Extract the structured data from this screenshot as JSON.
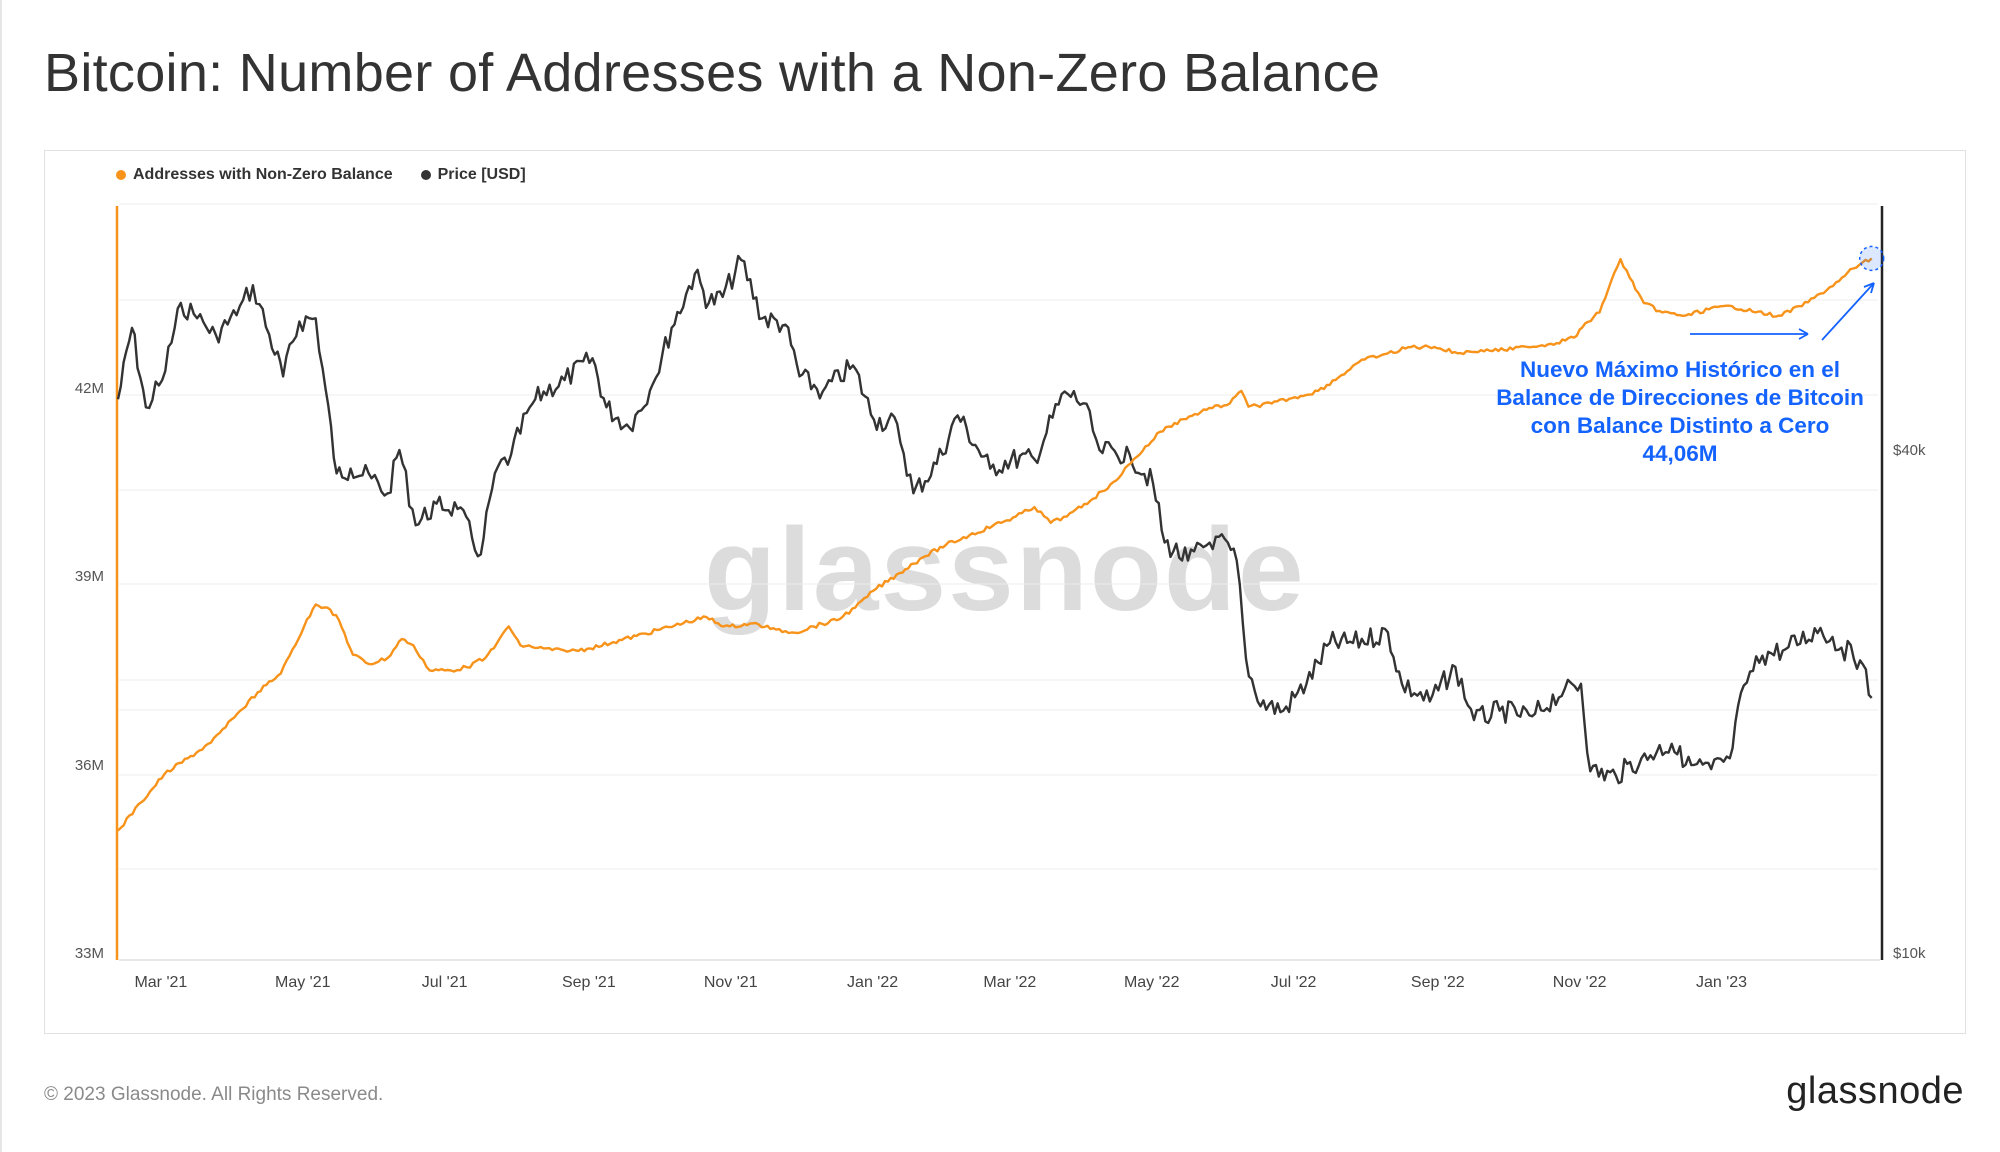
{
  "title": "Bitcoin: Number of Addresses with a Non-Zero Balance",
  "legend": [
    {
      "label": "Addresses with Non-Zero Balance",
      "color": "#f7931a"
    },
    {
      "label": "Price [USD]",
      "color": "#333333"
    }
  ],
  "watermark": "glassnode",
  "annotation": {
    "lines": [
      "Nuevo Máximo Histórico en el",
      "Balance de Direcciones de Bitcoin",
      "con Balance Distinto a Cero",
      "44,06M"
    ],
    "color": "#1463ff"
  },
  "footer": "© 2023 Glassnode. All Rights Reserved.",
  "logo": "glassnode",
  "chart_data": {
    "type": "line",
    "x_ticks": [
      "Mar '21",
      "May '21",
      "Jul '21",
      "Sep '21",
      "Nov '21",
      "Jan '22",
      "Mar '22",
      "May '22",
      "Jul '22",
      "Sep '22",
      "Nov '22",
      "Jan '23"
    ],
    "y_left_ticks": [
      "33M",
      "36M",
      "39M",
      "42M"
    ],
    "y_right_ticks": [
      "$10k",
      "$40k"
    ],
    "y_left_range": [
      33000000,
      45000000
    ],
    "y_right_scale": "log",
    "x_range": [
      "2021-02-14",
      "2023-03-14"
    ],
    "grid": true,
    "legend_position": "top-left",
    "series": [
      {
        "name": "Addresses with Non-Zero Balance",
        "axis": "left",
        "color": "#f7931a",
        "points": [
          [
            "2021-02-14",
            34.95
          ],
          [
            "2021-02-24",
            35.4
          ],
          [
            "2021-03-06",
            35.85
          ],
          [
            "2021-03-16",
            36.1
          ],
          [
            "2021-03-26",
            36.35
          ],
          [
            "2021-04-05",
            36.75
          ],
          [
            "2021-04-15",
            37.15
          ],
          [
            "2021-04-25",
            37.45
          ],
          [
            "2021-05-05",
            38.2
          ],
          [
            "2021-05-10",
            38.55
          ],
          [
            "2021-05-15",
            38.5
          ],
          [
            "2021-05-20",
            38.3
          ],
          [
            "2021-05-26",
            37.75
          ],
          [
            "2021-06-02",
            37.6
          ],
          [
            "2021-06-10",
            37.7
          ],
          [
            "2021-06-16",
            38.0
          ],
          [
            "2021-06-21",
            37.9
          ],
          [
            "2021-06-28",
            37.5
          ],
          [
            "2021-07-07",
            37.5
          ],
          [
            "2021-07-14",
            37.55
          ],
          [
            "2021-07-22",
            37.7
          ],
          [
            "2021-07-28",
            38.0
          ],
          [
            "2021-08-01",
            38.2
          ],
          [
            "2021-08-06",
            37.9
          ],
          [
            "2021-08-16",
            37.85
          ],
          [
            "2021-08-26",
            37.8
          ],
          [
            "2021-09-05",
            37.85
          ],
          [
            "2021-09-15",
            37.95
          ],
          [
            "2021-09-25",
            38.05
          ],
          [
            "2021-10-05",
            38.15
          ],
          [
            "2021-10-15",
            38.25
          ],
          [
            "2021-10-25",
            38.35
          ],
          [
            "2021-10-30",
            38.25
          ],
          [
            "2021-11-04",
            38.2
          ],
          [
            "2021-11-14",
            38.25
          ],
          [
            "2021-11-24",
            38.15
          ],
          [
            "2021-12-02",
            38.1
          ],
          [
            "2021-12-10",
            38.2
          ],
          [
            "2021-12-20",
            38.3
          ],
          [
            "2021-12-28",
            38.5
          ],
          [
            "2022-01-06",
            38.8
          ],
          [
            "2022-01-16",
            39.05
          ],
          [
            "2022-01-26",
            39.3
          ],
          [
            "2022-02-05",
            39.5
          ],
          [
            "2022-02-15",
            39.65
          ],
          [
            "2022-02-25",
            39.8
          ],
          [
            "2022-03-07",
            39.95
          ],
          [
            "2022-03-15",
            40.1
          ],
          [
            "2022-03-22",
            39.85
          ],
          [
            "2022-03-29",
            39.95
          ],
          [
            "2022-04-08",
            40.2
          ],
          [
            "2022-04-18",
            40.5
          ],
          [
            "2022-04-28",
            40.9
          ],
          [
            "2022-05-08",
            41.3
          ],
          [
            "2022-05-18",
            41.5
          ],
          [
            "2022-05-28",
            41.65
          ],
          [
            "2022-06-07",
            41.75
          ],
          [
            "2022-06-12",
            41.95
          ],
          [
            "2022-06-15",
            41.7
          ],
          [
            "2022-06-25",
            41.75
          ],
          [
            "2022-07-05",
            41.85
          ],
          [
            "2022-07-15",
            41.95
          ],
          [
            "2022-07-25",
            42.2
          ],
          [
            "2022-08-04",
            42.45
          ],
          [
            "2022-08-14",
            42.55
          ],
          [
            "2022-08-24",
            42.65
          ],
          [
            "2022-09-03",
            42.65
          ],
          [
            "2022-09-13",
            42.55
          ],
          [
            "2022-09-23",
            42.6
          ],
          [
            "2022-10-03",
            42.6
          ],
          [
            "2022-10-13",
            42.65
          ],
          [
            "2022-10-23",
            42.7
          ],
          [
            "2022-11-02",
            42.8
          ],
          [
            "2022-11-08",
            43.05
          ],
          [
            "2022-11-13",
            43.2
          ],
          [
            "2022-11-18",
            43.7
          ],
          [
            "2022-11-22",
            44.05
          ],
          [
            "2022-11-26",
            43.75
          ],
          [
            "2022-12-02",
            43.35
          ],
          [
            "2022-12-10",
            43.2
          ],
          [
            "2022-12-20",
            43.15
          ],
          [
            "2022-12-30",
            43.25
          ],
          [
            "2023-01-09",
            43.3
          ],
          [
            "2023-01-19",
            43.2
          ],
          [
            "2023-01-29",
            43.15
          ],
          [
            "2023-02-08",
            43.3
          ],
          [
            "2023-02-16",
            43.5
          ],
          [
            "2023-02-24",
            43.7
          ],
          [
            "2023-03-02",
            43.9
          ],
          [
            "2023-03-10",
            44.06
          ]
        ]
      },
      {
        "name": "Price [USD]",
        "axis": "right",
        "color": "#333333",
        "points": [
          [
            "2021-02-14",
            46000
          ],
          [
            "2021-02-20",
            56000
          ],
          [
            "2021-02-26",
            45000
          ],
          [
            "2021-03-05",
            48500
          ],
          [
            "2021-03-13",
            60000
          ],
          [
            "2021-03-20",
            57500
          ],
          [
            "2021-03-28",
            55000
          ],
          [
            "2021-04-06",
            58000
          ],
          [
            "2021-04-13",
            63000
          ],
          [
            "2021-04-20",
            55000
          ],
          [
            "2021-04-26",
            49000
          ],
          [
            "2021-05-03",
            57000
          ],
          [
            "2021-05-10",
            57500
          ],
          [
            "2021-05-13",
            50000
          ],
          [
            "2021-05-19",
            37500
          ],
          [
            "2021-05-25",
            38000
          ],
          [
            "2021-06-03",
            37000
          ],
          [
            "2021-06-10",
            35500
          ],
          [
            "2021-06-15",
            40000
          ],
          [
            "2021-06-22",
            32500
          ],
          [
            "2021-07-01",
            34500
          ],
          [
            "2021-07-10",
            34000
          ],
          [
            "2021-07-20",
            30000
          ],
          [
            "2021-07-26",
            37500
          ],
          [
            "2021-08-02",
            39500
          ],
          [
            "2021-08-10",
            45000
          ],
          [
            "2021-08-16",
            47000
          ],
          [
            "2021-08-25",
            48500
          ],
          [
            "2021-09-06",
            51500
          ],
          [
            "2021-09-12",
            45000
          ],
          [
            "2021-09-22",
            42500
          ],
          [
            "2021-10-02",
            48000
          ],
          [
            "2021-10-10",
            56000
          ],
          [
            "2021-10-20",
            65000
          ],
          [
            "2021-10-26",
            60000
          ],
          [
            "2021-11-01",
            61000
          ],
          [
            "2021-11-09",
            67500
          ],
          [
            "2021-11-18",
            57500
          ],
          [
            "2021-11-28",
            56500
          ],
          [
            "2021-12-04",
            49000
          ],
          [
            "2021-12-14",
            47000
          ],
          [
            "2021-12-27",
            50500
          ],
          [
            "2022-01-05",
            43500
          ],
          [
            "2022-01-15",
            43000
          ],
          [
            "2022-01-22",
            35500
          ],
          [
            "2022-02-01",
            38500
          ],
          [
            "2022-02-10",
            44000
          ],
          [
            "2022-02-24",
            38000
          ],
          [
            "2022-03-05",
            39000
          ],
          [
            "2022-03-15",
            39000
          ],
          [
            "2022-03-28",
            47000
          ],
          [
            "2022-04-05",
            45500
          ],
          [
            "2022-04-12",
            40000
          ],
          [
            "2022-04-25",
            39500
          ],
          [
            "2022-05-05",
            36500
          ],
          [
            "2022-05-10",
            31000
          ],
          [
            "2022-05-20",
            29500
          ],
          [
            "2022-06-01",
            31500
          ],
          [
            "2022-06-10",
            29500
          ],
          [
            "2022-06-14",
            22500
          ],
          [
            "2022-06-19",
            20000
          ],
          [
            "2022-06-30",
            19500
          ],
          [
            "2022-07-10",
            21000
          ],
          [
            "2022-07-20",
            23500
          ],
          [
            "2022-07-30",
            23500
          ],
          [
            "2022-08-14",
            24200
          ],
          [
            "2022-08-20",
            21000
          ],
          [
            "2022-09-01",
            20000
          ],
          [
            "2022-09-12",
            22000
          ],
          [
            "2022-09-20",
            19000
          ],
          [
            "2022-10-01",
            19500
          ],
          [
            "2022-10-15",
            19200
          ],
          [
            "2022-10-29",
            20700
          ],
          [
            "2022-11-05",
            21000
          ],
          [
            "2022-11-09",
            16500
          ],
          [
            "2022-11-20",
            16300
          ],
          [
            "2022-12-01",
            17100
          ],
          [
            "2022-12-14",
            17800
          ],
          [
            "2022-12-20",
            16800
          ],
          [
            "2022-12-31",
            16600
          ],
          [
            "2023-01-08",
            17100
          ],
          [
            "2023-01-14",
            20900
          ],
          [
            "2023-01-22",
            22700
          ],
          [
            "2023-02-01",
            23100
          ],
          [
            "2023-02-16",
            24500
          ],
          [
            "2023-02-25",
            23200
          ],
          [
            "2023-03-05",
            22400
          ],
          [
            "2023-03-10",
            20200
          ]
        ]
      }
    ]
  }
}
